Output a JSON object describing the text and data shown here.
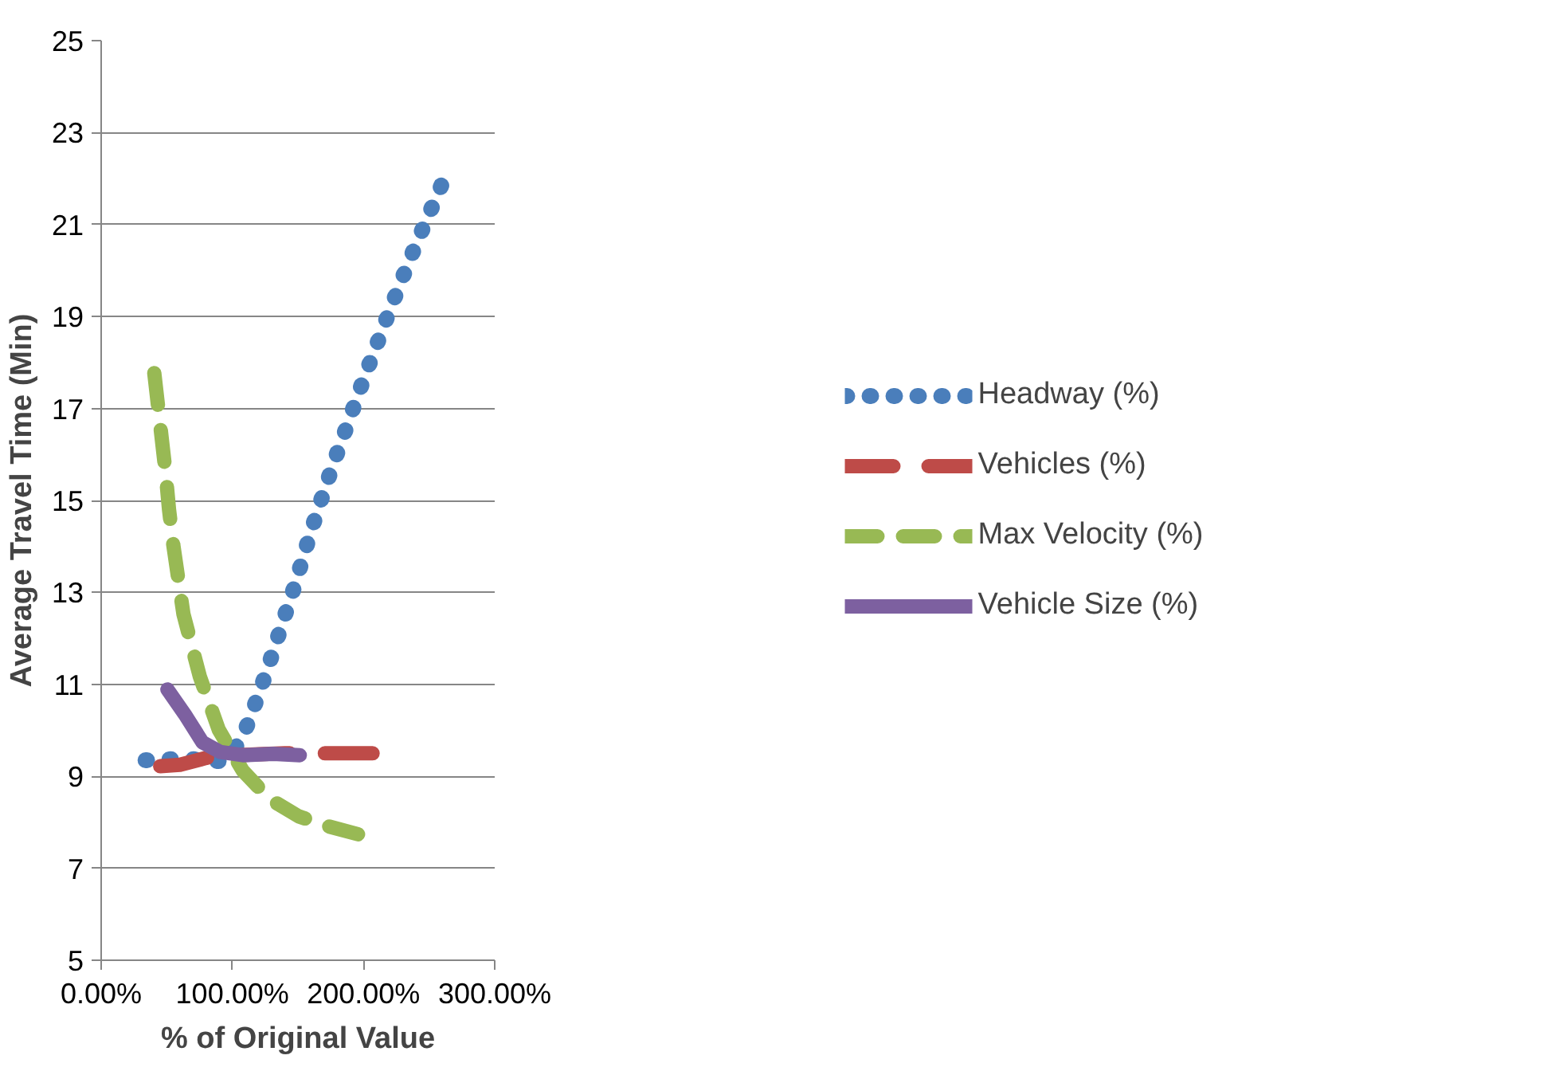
{
  "chart_data": {
    "type": "line",
    "xlabel": "% of Original Value",
    "ylabel": "Average Travel Time (Min)",
    "xlim": [
      0,
      300
    ],
    "xticks": [
      {
        "value": 0,
        "label": "0.00%"
      },
      {
        "value": 100,
        "label": "100.00%"
      },
      {
        "value": 200,
        "label": "200.00%"
      },
      {
        "value": 300,
        "label": "300.00%"
      }
    ],
    "ylim": [
      5,
      25
    ],
    "yticks": [
      5,
      7,
      9,
      11,
      13,
      15,
      17,
      19,
      21,
      23,
      25
    ],
    "grid": "y",
    "legend": "right",
    "series": [
      {
        "name": "Headway (%)",
        "color": "#4a7ebb",
        "line_style": "dotted",
        "x": [
          33.8,
          44.9,
          56.3,
          67.5,
          78.7,
          90.1,
          100,
          109.6,
          117.3,
          124.8,
          131.9,
          138.9,
          146.0,
          152.8,
          159.5,
          166.5,
          173.8,
          181.0,
          188.7,
          196.0,
          203.7,
          211.4,
          219.1,
          226.9,
          234.8,
          242.9,
          251.0,
          259.3
        ],
        "values": [
          9.35,
          9.35,
          9.38,
          9.38,
          9.35,
          9.33,
          9.5,
          9.98,
          10.57,
          11.17,
          11.78,
          12.4,
          13.01,
          13.65,
          14.29,
          14.91,
          15.53,
          16.12,
          16.72,
          17.32,
          17.91,
          18.49,
          19.07,
          19.64,
          20.21,
          20.76,
          21.3,
          21.85
        ]
      },
      {
        "name": "Vehicles (%)",
        "color": "#be4b48",
        "line_style": "dashed",
        "x": [
          45,
          60,
          80,
          100,
          120,
          140,
          160,
          180,
          200,
          220
        ],
        "values": [
          9.22,
          9.25,
          9.4,
          9.45,
          9.48,
          9.5,
          9.5,
          9.5,
          9.5,
          9.5
        ]
      },
      {
        "name": "Max Velocity (%)",
        "color": "#98b954",
        "line_style": "dashed",
        "x": [
          40.5,
          49.2,
          51.7,
          55.0,
          62.7,
          75.2,
          89.7,
          108.0,
          128.3,
          150.5,
          173.6,
          195.8
        ],
        "values": [
          17.77,
          15.59,
          14.81,
          14.03,
          12.53,
          11.17,
          10.01,
          9.12,
          8.51,
          8.13,
          7.91,
          7.74
        ]
      },
      {
        "name": "Vehicle Size (%)",
        "color": "#7d60a0",
        "line_style": "solid",
        "x": [
          50.5,
          63.7,
          77.2,
          90.7,
          108.0,
          131.2,
          151.4
        ],
        "values": [
          10.89,
          10.35,
          9.74,
          9.53,
          9.46,
          9.49,
          9.46
        ]
      }
    ]
  }
}
